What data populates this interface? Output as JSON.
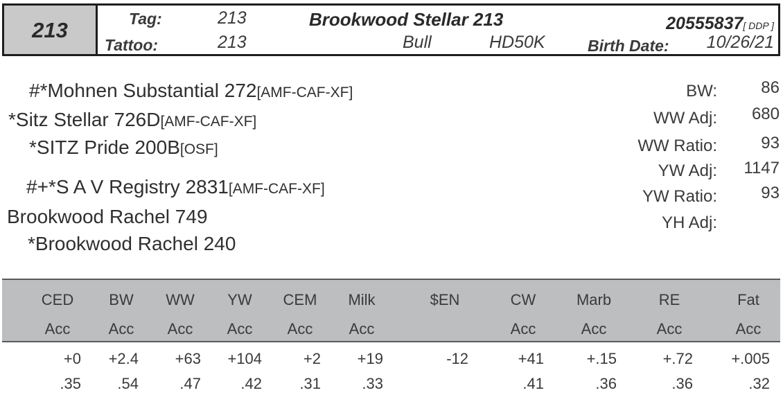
{
  "lot": "213",
  "header": {
    "tag_label": "Tag:",
    "tag_value": "213",
    "tattoo_label": "Tattoo:",
    "tattoo_value": "213",
    "animal_name": "Brookwood Stellar 213",
    "sex": "Bull",
    "genomics": "HD50K",
    "registration": "20555837",
    "registration_suffix": "[ DDP ]",
    "birth_date_label": "Birth Date:",
    "birth_date": "10/26/21"
  },
  "pedigree": {
    "sire_sire": {
      "name": "#*Mohnen Substantial 272",
      "suffix": "[AMF-CAF-XF]"
    },
    "sire": {
      "name": "*Sitz Stellar 726D",
      "suffix": "[AMF-CAF-XF]"
    },
    "sire_dam": {
      "name": "*SITZ Pride 200B",
      "suffix": "[OSF]"
    },
    "dam_sire": {
      "name": "#+*S A V Registry 2831",
      "suffix": "[AMF-CAF-XF]"
    },
    "dam": {
      "name": "Brookwood Rachel 749",
      "suffix": ""
    },
    "dam_dam": {
      "name": "*Brookwood Rachel 240",
      "suffix": ""
    }
  },
  "performance": [
    {
      "label": "BW:",
      "value": "86"
    },
    {
      "label": "WW Adj:",
      "value": "680"
    },
    {
      "label": "WW Ratio:",
      "value": "93"
    },
    {
      "label": "YW Adj:",
      "value": "1147"
    },
    {
      "label": "YW Ratio:",
      "value": "93"
    },
    {
      "label": "YH Adj:",
      "value": ""
    }
  ],
  "epds": [
    {
      "trait": "CED",
      "acc_label": "Acc",
      "epd": "+0",
      "acc": ".35"
    },
    {
      "trait": "BW",
      "acc_label": "Acc",
      "epd": "+2.4",
      "acc": ".54"
    },
    {
      "trait": "WW",
      "acc_label": "Acc",
      "epd": "+63",
      "acc": ".47"
    },
    {
      "trait": "YW",
      "acc_label": "Acc",
      "epd": "+104",
      "acc": ".42"
    },
    {
      "trait": "CEM",
      "acc_label": "Acc",
      "epd": "+2",
      "acc": ".31"
    },
    {
      "trait": "Milk",
      "acc_label": "Acc",
      "epd": "+19",
      "acc": ".33"
    },
    {
      "trait": "$EN",
      "acc_label": "",
      "epd": "-12",
      "acc": ""
    },
    {
      "trait": "CW",
      "acc_label": "Acc",
      "epd": "+41",
      "acc": ".41"
    },
    {
      "trait": "Marb",
      "acc_label": "Acc",
      "epd": "+.15",
      "acc": ".36"
    },
    {
      "trait": "RE",
      "acc_label": "Acc",
      "epd": "+.72",
      "acc": ".36"
    },
    {
      "trait": "Fat",
      "acc_label": "Acc",
      "epd": "+.005",
      "acc": ".32"
    }
  ]
}
